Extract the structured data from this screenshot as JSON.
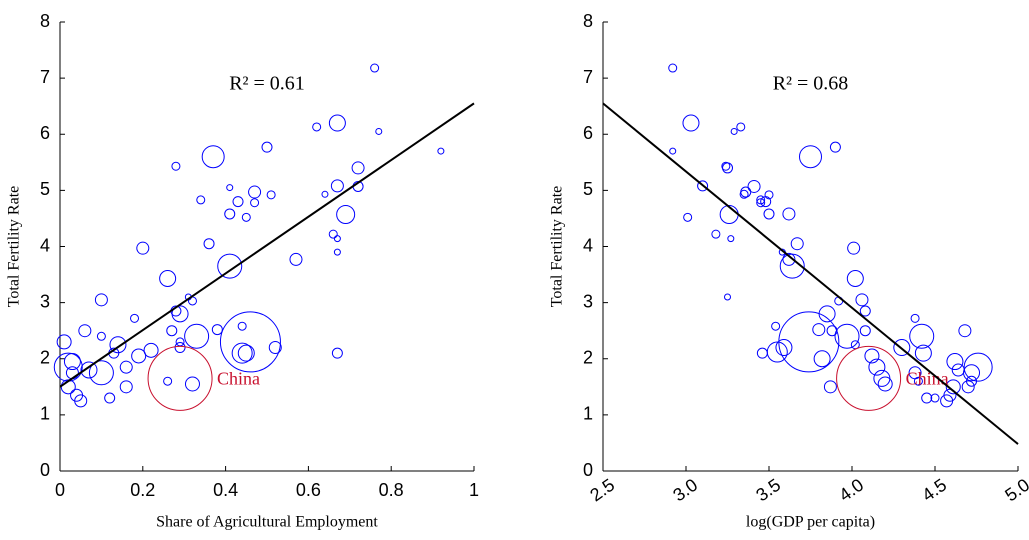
{
  "chart_data": [
    {
      "type": "bubble",
      "xlabel": "Share of Agricultural Employment",
      "ylabel": "Total Fertility Rate",
      "annotation": "R² = 0.61",
      "xlim": [
        0,
        1
      ],
      "xticks": [
        0,
        0.2,
        0.4,
        0.6,
        0.8,
        1
      ],
      "ylim": [
        0,
        8
      ],
      "yticks": [
        0,
        1,
        2,
        3,
        4,
        5,
        6,
        7,
        8
      ],
      "fit_line": {
        "color": "#000000",
        "x": [
          0,
          1
        ],
        "y": [
          1.5,
          6.55
        ]
      },
      "series": [
        {
          "color": "#0000ff",
          "x": [
            0.02,
            0.01,
            0.03,
            0.02,
            0.04,
            0.05,
            0.03,
            0.06,
            0.07,
            0.1,
            0.1,
            0.1,
            0.12,
            0.13,
            0.14,
            0.16,
            0.16,
            0.19,
            0.2,
            0.22,
            0.18,
            0.26,
            0.27,
            0.28,
            0.29,
            0.29,
            0.29,
            0.28,
            0.31,
            0.32,
            0.33,
            0.32,
            0.26,
            0.34,
            0.36,
            0.37,
            0.38,
            0.41,
            0.41,
            0.41,
            0.43,
            0.44,
            0.44,
            0.45,
            0.45,
            0.46,
            0.47,
            0.47,
            0.5,
            0.51,
            0.52,
            0.57,
            0.62,
            0.64,
            0.66,
            0.67,
            0.67,
            0.67,
            0.67,
            0.67,
            0.69,
            0.72,
            0.72,
            0.76,
            0.77,
            0.92
          ],
          "y": [
            1.85,
            2.3,
            1.95,
            1.5,
            1.35,
            1.25,
            1.75,
            2.5,
            1.8,
            1.75,
            3.05,
            2.4,
            1.3,
            2.1,
            2.25,
            1.5,
            1.85,
            2.05,
            3.97,
            2.15,
            2.72,
            3.43,
            2.5,
            2.85,
            2.8,
            2.2,
            2.3,
            5.43,
            3.1,
            3.03,
            2.4,
            1.55,
            1.6,
            4.83,
            4.05,
            5.6,
            2.52,
            3.65,
            5.05,
            4.58,
            4.8,
            2.58,
            2.1,
            2.1,
            4.52,
            2.3,
            4.78,
            4.97,
            5.77,
            4.92,
            2.2,
            3.77,
            6.13,
            4.93,
            4.22,
            4.14,
            3.9,
            6.2,
            2.1,
            5.08,
            4.57,
            5.07,
            5.4,
            7.18,
            6.05,
            5.7
          ],
          "sizes": [
            14,
            7,
            8,
            7,
            6,
            6,
            6,
            6,
            8,
            12,
            6,
            4,
            5,
            5,
            8,
            6,
            6,
            7,
            6,
            7,
            4,
            8,
            5,
            5,
            8,
            5,
            4,
            4,
            3,
            4,
            12,
            7,
            4,
            4,
            5,
            11,
            5,
            12,
            3,
            5,
            5,
            4,
            10,
            8,
            4,
            30,
            4,
            6,
            5,
            4,
            6,
            6,
            4,
            3,
            4,
            3,
            3,
            8,
            5,
            6,
            9,
            5,
            6,
            4,
            3,
            3
          ]
        },
        {
          "name": "China",
          "color": "#c8102e",
          "x": [
            0.29
          ],
          "y": [
            1.65
          ],
          "sizes": [
            32
          ]
        }
      ]
    },
    {
      "type": "bubble",
      "xlabel": "log(GDP per capita)",
      "ylabel": "Total Fertility Rate",
      "annotation": "R² = 0.68",
      "xtick_rotation": -35,
      "xlim": [
        2.5,
        5
      ],
      "xticks": [
        2.5,
        {
          "value": 3,
          "label": "3.0"
        },
        3.5,
        {
          "value": 4,
          "label": "4.0"
        },
        4.5,
        {
          "value": 5,
          "label": "5.0"
        }
      ],
      "ylim": [
        0,
        8
      ],
      "yticks": [
        0,
        1,
        2,
        3,
        4,
        5,
        6,
        7,
        8
      ],
      "fit_line": {
        "color": "#000000",
        "x": [
          2.5,
          5
        ],
        "y": [
          6.55,
          0.48
        ]
      },
      "series": [
        {
          "color": "#0000ff",
          "x": [
            2.92,
            2.92,
            3.01,
            3.03,
            3.1,
            3.18,
            3.24,
            3.25,
            3.25,
            3.26,
            3.27,
            3.29,
            3.33,
            3.35,
            3.36,
            3.41,
            3.45,
            3.45,
            3.48,
            3.5,
            3.5,
            3.46,
            3.54,
            3.55,
            3.59,
            3.58,
            3.62,
            3.62,
            3.64,
            3.67,
            3.74,
            3.75,
            3.8,
            3.82,
            3.85,
            3.88,
            3.9,
            3.87,
            3.92,
            3.97,
            4.01,
            4.02,
            4.02,
            4.06,
            4.08,
            4.08,
            4.12,
            4.15,
            4.18,
            4.2,
            4.3,
            4.38,
            4.42,
            4.38,
            4.4,
            4.43,
            4.45,
            4.5,
            4.57,
            4.59,
            4.61,
            4.62,
            4.64,
            4.68,
            4.7,
            4.72,
            4.76,
            4.72
          ],
          "y": [
            7.18,
            5.7,
            4.52,
            6.2,
            5.08,
            4.22,
            5.43,
            5.4,
            3.1,
            4.57,
            4.14,
            6.05,
            6.13,
            4.93,
            4.97,
            5.07,
            4.83,
            4.78,
            4.8,
            4.92,
            4.58,
            2.1,
            2.58,
            2.12,
            2.2,
            3.9,
            4.58,
            3.77,
            3.65,
            4.05,
            2.3,
            5.6,
            2.52,
            2.0,
            2.8,
            2.5,
            5.77,
            1.5,
            3.03,
            2.4,
            3.97,
            3.43,
            2.25,
            3.05,
            2.5,
            2.85,
            2.05,
            1.85,
            1.65,
            1.55,
            2.2,
            2.72,
            2.4,
            1.75,
            1.6,
            2.1,
            1.3,
            1.3,
            1.25,
            1.35,
            1.5,
            1.95,
            1.8,
            2.5,
            1.5,
            1.75,
            1.85,
            1.6
          ],
          "sizes": [
            4,
            3,
            4,
            8,
            5,
            4,
            4,
            5,
            3,
            9,
            3,
            3,
            4,
            4,
            5,
            6,
            4,
            4,
            5,
            4,
            5,
            5,
            4,
            10,
            8,
            3,
            6,
            6,
            12,
            6,
            30,
            11,
            6,
            8,
            8,
            5,
            5,
            6,
            4,
            12,
            6,
            8,
            4,
            6,
            5,
            5,
            7,
            8,
            8,
            7,
            8,
            4,
            12,
            6,
            4,
            8,
            5,
            4,
            6,
            6,
            7,
            8,
            6,
            6,
            6,
            8,
            14,
            5
          ]
        },
        {
          "name": "China",
          "color": "#c8102e",
          "x": [
            4.1
          ],
          "y": [
            1.65
          ],
          "sizes": [
            32
          ]
        }
      ]
    }
  ]
}
